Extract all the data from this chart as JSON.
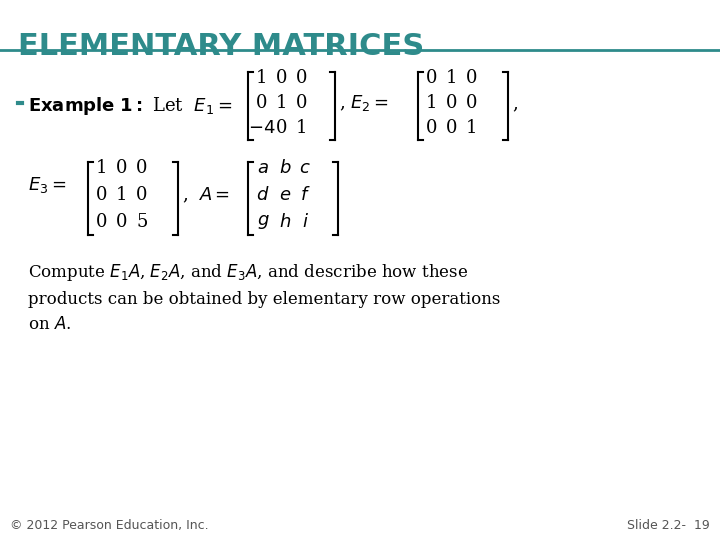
{
  "title": "ELEMENTARY MATRICES",
  "title_color": "#2E8B8B",
  "title_fontsize": 22,
  "bg_color": "#FFFFFF",
  "header_line_color": "#2E8B8B",
  "bullet_text": "Example 1:",
  "bullet_color": "#2E8B8B",
  "body_color": "#000000",
  "footer_left": "© 2012 Pearson Education, Inc.",
  "footer_right": "Slide 2.2-  19",
  "footer_color": "#555555",
  "footer_fontsize": 9
}
